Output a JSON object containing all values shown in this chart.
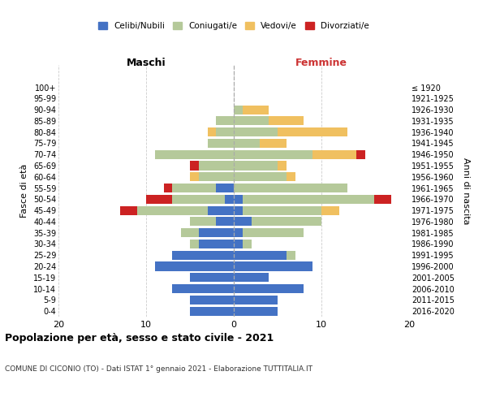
{
  "age_groups": [
    "0-4",
    "5-9",
    "10-14",
    "15-19",
    "20-24",
    "25-29",
    "30-34",
    "35-39",
    "40-44",
    "45-49",
    "50-54",
    "55-59",
    "60-64",
    "65-69",
    "70-74",
    "75-79",
    "80-84",
    "85-89",
    "90-94",
    "95-99",
    "100+"
  ],
  "birth_years": [
    "2016-2020",
    "2011-2015",
    "2006-2010",
    "2001-2005",
    "1996-2000",
    "1991-1995",
    "1986-1990",
    "1981-1985",
    "1976-1980",
    "1971-1975",
    "1966-1970",
    "1961-1965",
    "1956-1960",
    "1951-1955",
    "1946-1950",
    "1941-1945",
    "1936-1940",
    "1931-1935",
    "1926-1930",
    "1921-1925",
    "≤ 1920"
  ],
  "maschi": {
    "celibi": [
      5,
      5,
      7,
      5,
      9,
      7,
      4,
      4,
      2,
      3,
      1,
      2,
      0,
      0,
      0,
      0,
      0,
      0,
      0,
      0,
      0
    ],
    "coniugati": [
      0,
      0,
      0,
      0,
      0,
      0,
      1,
      2,
      3,
      8,
      6,
      5,
      4,
      4,
      9,
      3,
      2,
      2,
      0,
      0,
      0
    ],
    "vedovi": [
      0,
      0,
      0,
      0,
      0,
      0,
      0,
      0,
      0,
      0,
      0,
      0,
      1,
      0,
      0,
      0,
      1,
      0,
      0,
      0,
      0
    ],
    "divorziati": [
      0,
      0,
      0,
      0,
      0,
      0,
      0,
      0,
      0,
      2,
      3,
      1,
      0,
      1,
      0,
      0,
      0,
      0,
      0,
      0,
      0
    ]
  },
  "femmine": {
    "nubili": [
      5,
      5,
      8,
      4,
      9,
      6,
      1,
      1,
      2,
      1,
      1,
      0,
      0,
      0,
      0,
      0,
      0,
      0,
      0,
      0,
      0
    ],
    "coniugate": [
      0,
      0,
      0,
      0,
      0,
      1,
      1,
      7,
      8,
      9,
      15,
      13,
      6,
      5,
      9,
      3,
      5,
      4,
      1,
      0,
      0
    ],
    "vedove": [
      0,
      0,
      0,
      0,
      0,
      0,
      0,
      0,
      0,
      2,
      0,
      0,
      1,
      1,
      5,
      3,
      8,
      4,
      3,
      0,
      0
    ],
    "divorziate": [
      0,
      0,
      0,
      0,
      0,
      0,
      0,
      0,
      0,
      0,
      2,
      0,
      0,
      0,
      1,
      0,
      0,
      0,
      0,
      0,
      0
    ]
  },
  "colors": {
    "celibi": "#4472c4",
    "coniugati": "#b5c99a",
    "vedovi": "#f0c060",
    "divorziati": "#cc2222"
  },
  "title": "Popolazione per età, sesso e stato civile - 2021",
  "subtitle": "COMUNE DI CICONIO (TO) - Dati ISTAT 1° gennaio 2021 - Elaborazione TUTTITALIA.IT",
  "xlabel_left": "Maschi",
  "xlabel_right": "Femmine",
  "ylabel_left": "Fasce di età",
  "ylabel_right": "Anni di nascita",
  "xlim": 20,
  "legend_labels": [
    "Celibi/Nubili",
    "Coniugati/e",
    "Vedovi/e",
    "Divorziati/e"
  ],
  "background_color": "#ffffff",
  "grid_color": "#cccccc"
}
